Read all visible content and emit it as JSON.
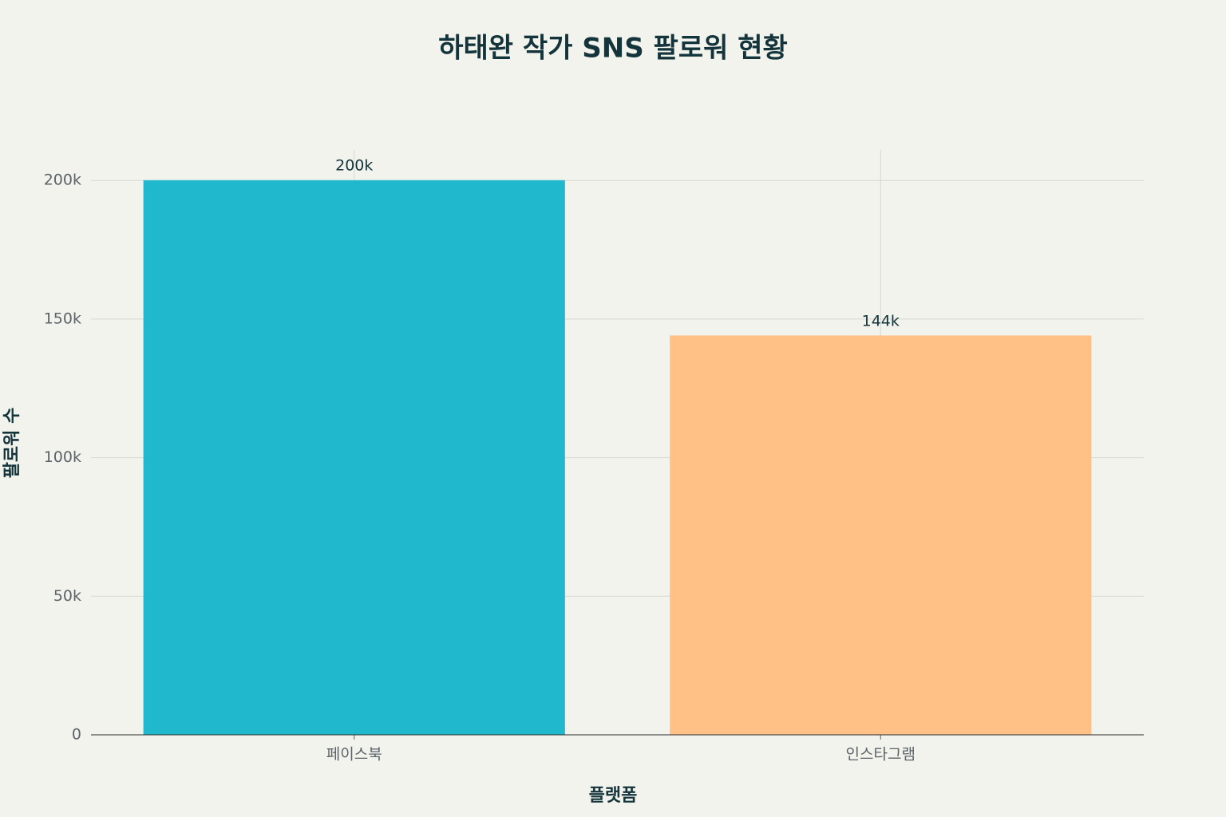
{
  "chart_data": {
    "type": "bar",
    "title": "하태완 작가 SNS 팔로워 현황",
    "x_label": "플랫폼",
    "y_label": "팔로워 수",
    "categories": [
      "페이스북",
      "인스타그램"
    ],
    "values": [
      200000,
      144000
    ],
    "value_labels": [
      "200k",
      "144k"
    ],
    "colors": [
      "#1FB8CD",
      "#FFC185"
    ],
    "ylim": [
      0,
      211000
    ],
    "yticks": [
      0,
      {
        "value": 50000,
        "label": "50k"
      },
      {
        "value": 100000,
        "label": "100k"
      },
      {
        "value": 150000,
        "label": "150k"
      },
      {
        "value": 200000,
        "label": "200k"
      }
    ],
    "grid": true
  }
}
